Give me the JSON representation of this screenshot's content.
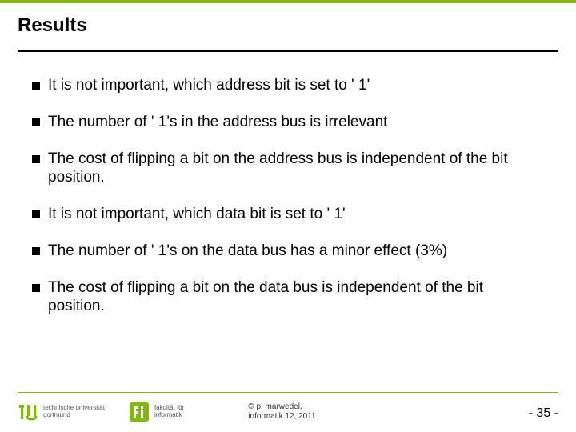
{
  "colors": {
    "accent_green": "#7fba00",
    "text": "#000000",
    "footer_text": "#555555",
    "background": "#ffffff"
  },
  "slide": {
    "title": "Results",
    "bullets": [
      "It is not important, which address bit is set to ' 1'",
      "The number of ' 1's in the address bus is irrelevant",
      "The cost of flipping a bit on the address bus is independent of the bit position.",
      "It is not important, which data bit is set to ' 1'",
      "The number of ' 1's on the data bus has a minor effect (3%)",
      "The cost of flipping a bit on the data bus is independent of the bit position."
    ]
  },
  "footer": {
    "tu_logo_label": "technische universität\ndortmund",
    "fi_logo_label": "fakultät für\ninformatik",
    "copyright_line1": "©  p. marwedel,",
    "copyright_line2": "informatik 12,  2011",
    "page_prefix": "-  ",
    "page_number": "35",
    "page_suffix": " -"
  }
}
